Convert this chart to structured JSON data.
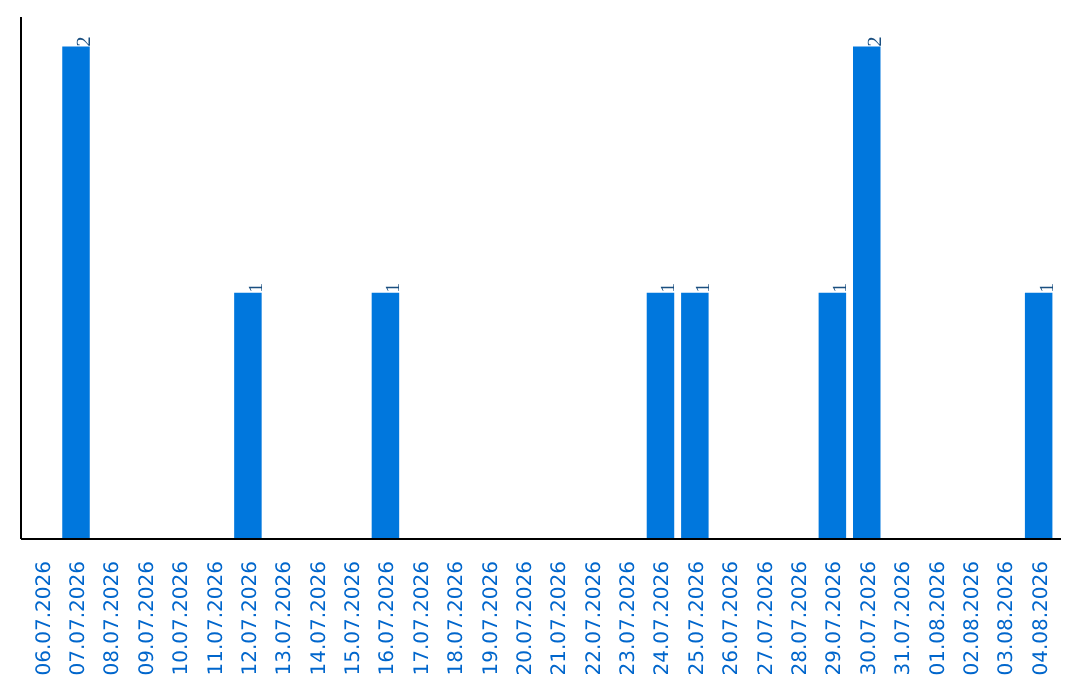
{
  "chart_data": {
    "type": "bar",
    "categories": [
      "06.07.2026",
      "07.07.2026",
      "08.07.2026",
      "09.07.2026",
      "10.07.2026",
      "11.07.2026",
      "12.07.2026",
      "13.07.2026",
      "14.07.2026",
      "15.07.2026",
      "16.07.2026",
      "17.07.2026",
      "18.07.2026",
      "19.07.2026",
      "20.07.2026",
      "21.07.2026",
      "22.07.2026",
      "23.07.2026",
      "24.07.2026",
      "25.07.2026",
      "26.07.2026",
      "27.07.2026",
      "28.07.2026",
      "29.07.2026",
      "30.07.2026",
      "31.07.2026",
      "01.08.2026",
      "02.08.2026",
      "03.08.2026",
      "04.08.2026"
    ],
    "values": [
      0,
      2,
      0,
      0,
      0,
      0,
      1,
      0,
      0,
      0,
      1,
      0,
      0,
      0,
      0,
      0,
      0,
      0,
      1,
      1,
      0,
      0,
      0,
      1,
      2,
      0,
      0,
      0,
      0,
      1
    ],
    "value_labels": [
      null,
      "2",
      null,
      null,
      null,
      null,
      "1",
      null,
      null,
      null,
      "1",
      null,
      null,
      null,
      null,
      null,
      null,
      null,
      "1",
      "1",
      null,
      null,
      null,
      "1",
      "2",
      null,
      null,
      null,
      null,
      "1"
    ],
    "color": "#0077dd",
    "grid": false
  }
}
